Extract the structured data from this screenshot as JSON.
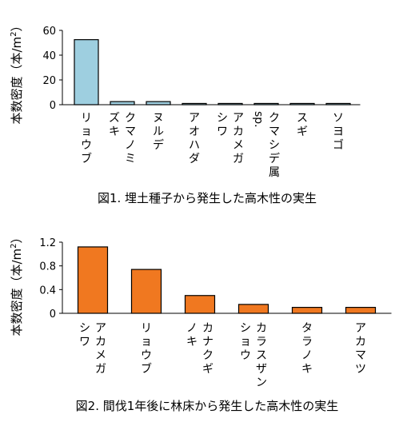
{
  "chart_data": [
    {
      "type": "bar",
      "ylabel_main": "本数密度",
      "ylabel_unit": "（本/m",
      "ylabel_sup": "2",
      "ylabel_close": "）",
      "ylim": [
        0,
        60
      ],
      "yticks": [
        "0",
        "20",
        "40",
        "60"
      ],
      "ytick_values": [
        0,
        20,
        40,
        60
      ],
      "bar_color": "#9ecfe0",
      "categories": [
        {
          "cols": [
            "リョウブ"
          ]
        },
        {
          "cols": [
            "クマノミ",
            "ズキ"
          ]
        },
        {
          "cols": [
            "ヌルデ"
          ]
        },
        {
          "cols": [
            "アオハダ"
          ]
        },
        {
          "cols": [
            "アカメガ",
            "シワ"
          ]
        },
        {
          "cols": [
            "クマシデ属",
            "sp."
          ]
        },
        {
          "cols": [
            "スギ"
          ]
        },
        {
          "cols": [
            "ソヨゴ"
          ]
        }
      ],
      "values": [
        52.5,
        2.5,
        2.5,
        1,
        1,
        1,
        1,
        1
      ],
      "caption": "図1. 埋土種子から発生した高木性の実生"
    },
    {
      "type": "bar",
      "ylabel_main": "本数密度",
      "ylabel_unit": "（本/m",
      "ylabel_sup": "2",
      "ylabel_close": "）",
      "ylim": [
        0,
        1.2
      ],
      "yticks": [
        "0",
        "0.4",
        "0.8",
        "1.2"
      ],
      "ytick_values": [
        0,
        0.4,
        0.8,
        1.2
      ],
      "bar_color": "#f07820",
      "categories": [
        {
          "cols": [
            "アカメガ",
            "シワ"
          ]
        },
        {
          "cols": [
            "リョウブ"
          ]
        },
        {
          "cols": [
            "カナクギ",
            "ノキ"
          ]
        },
        {
          "cols": [
            "カラスザン",
            "ショウ"
          ]
        },
        {
          "cols": [
            "タラノキ"
          ]
        },
        {
          "cols": [
            "アカマツ"
          ]
        }
      ],
      "values": [
        1.12,
        0.74,
        0.3,
        0.15,
        0.1,
        0.1
      ],
      "caption": "図2. 間伐1年後に林床から発生した高木性の実生"
    }
  ]
}
